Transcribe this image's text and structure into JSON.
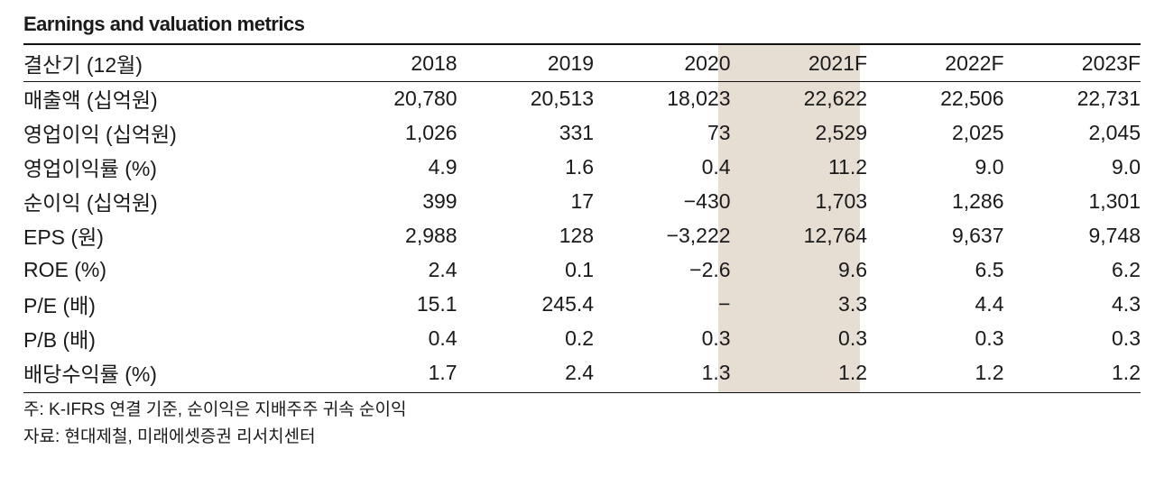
{
  "title": "Earnings and valuation metrics",
  "header": {
    "label": "결산기 (12월)",
    "years": [
      "2018",
      "2019",
      "2020",
      "2021F",
      "2022F",
      "2023F"
    ]
  },
  "highlight_color": "#e6ddd3",
  "rows": [
    {
      "label": "매출액 (십억원)",
      "values": [
        "20,780",
        "20,513",
        "18,023",
        "22,622",
        "22,506",
        "22,731"
      ]
    },
    {
      "label": "영업이익 (십억원)",
      "values": [
        "1,026",
        "331",
        "73",
        "2,529",
        "2,025",
        "2,045"
      ]
    },
    {
      "label": "영업이익률 (%)",
      "values": [
        "4.9",
        "1.6",
        "0.4",
        "11.2",
        "9.0",
        "9.0"
      ]
    },
    {
      "label": "순이익 (십억원)",
      "values": [
        "399",
        "17",
        "−430",
        "1,703",
        "1,286",
        "1,301"
      ]
    },
    {
      "label": "EPS (원)",
      "values": [
        "2,988",
        "128",
        "−3,222",
        "12,764",
        "9,637",
        "9,748"
      ]
    },
    {
      "label": "ROE (%)",
      "values": [
        "2.4",
        "0.1",
        "−2.6",
        "9.6",
        "6.5",
        "6.2"
      ]
    },
    {
      "label": "P/E (배)",
      "values": [
        "15.1",
        "245.4",
        "−",
        "3.3",
        "4.4",
        "4.3"
      ]
    },
    {
      "label": "P/B (배)",
      "values": [
        "0.4",
        "0.2",
        "0.3",
        "0.3",
        "0.3",
        "0.3"
      ]
    },
    {
      "label": "배당수익률 (%)",
      "values": [
        "1.7",
        "2.4",
        "1.3",
        "1.2",
        "1.2",
        "1.2"
      ]
    }
  ],
  "notes": [
    "주: K-IFRS 연결 기준, 순이익은 지배주주 귀속 순이익",
    "자료: 현대제철, 미래에셋증권 리서치센터"
  ]
}
